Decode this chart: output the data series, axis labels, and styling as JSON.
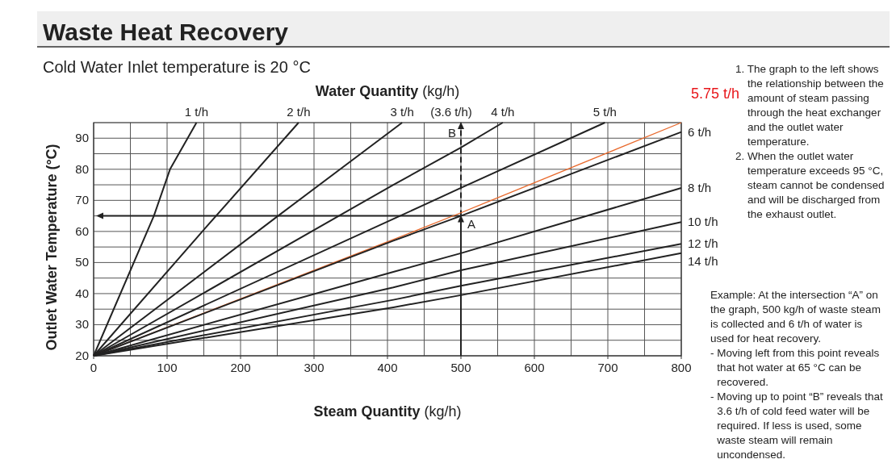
{
  "chart_data": {
    "type": "line",
    "title": "Waste Heat Recovery",
    "subtitle": "Cold Water Inlet temperature is 20 °C",
    "x2label": "Water Quantity (kg/h)",
    "xlabel": "Steam Quantity (kg/h)",
    "ylabel": "Outlet Water Temperature (°C)",
    "xlim": [
      0,
      800
    ],
    "xticks": [
      0,
      100,
      200,
      300,
      400,
      500,
      600,
      700,
      800
    ],
    "ylim": [
      20,
      95
    ],
    "yticks": [
      20,
      30,
      40,
      50,
      60,
      70,
      80,
      90
    ],
    "grid": true,
    "marker": "none",
    "line_style": "solid",
    "series": [
      {
        "name": "1 t/h",
        "color": "#222222",
        "x": [
          0,
          82,
          104,
          140
        ],
        "values": [
          20,
          65,
          80,
          95
        ]
      },
      {
        "name": "2 t/h",
        "color": "#222222",
        "x": [
          0,
          148,
          279
        ],
        "values": [
          20,
          60,
          95
        ]
      },
      {
        "name": "3 t/h",
        "color": "#222222",
        "x": [
          0,
          251,
          420
        ],
        "values": [
          20,
          65,
          95
        ]
      },
      {
        "name": "4 t/h",
        "color": "#222222",
        "x": [
          0,
          408,
          500,
          557
        ],
        "values": [
          20,
          75,
          87,
          95
        ]
      },
      {
        "name": "5 t/h",
        "color": "#222222",
        "x": [
          0,
          408,
          500,
          696
        ],
        "values": [
          20,
          64,
          74,
          95
        ]
      },
      {
        "name": "5.75 t/h",
        "color": "#e8692c",
        "x": [
          0,
          408,
          500,
          800
        ],
        "values": [
          20,
          57.4,
          66,
          95
        ]
      },
      {
        "name": "6 t/h",
        "color": "#222222",
        "x": [
          0,
          408,
          500,
          800
        ],
        "values": [
          20,
          57,
          65,
          92
        ]
      },
      {
        "name": "8 t/h",
        "color": "#222222",
        "x": [
          0,
          408,
          500,
          800
        ],
        "values": [
          20,
          47,
          53,
          74
        ]
      },
      {
        "name": "10 t/h",
        "color": "#222222",
        "x": [
          0,
          408,
          500,
          800
        ],
        "values": [
          20,
          42,
          47.5,
          63
        ]
      },
      {
        "name": "12 t/h",
        "color": "#222222",
        "x": [
          0,
          408,
          500,
          800
        ],
        "values": [
          20,
          38,
          42.5,
          56
        ]
      },
      {
        "name": "14 t/h",
        "color": "#222222",
        "x": [
          0,
          408,
          500,
          800
        ],
        "values": [
          20,
          35.6,
          39.5,
          53
        ]
      }
    ],
    "annotations": [
      {
        "text": "A",
        "x": 500,
        "y": 65
      },
      "B",
      "(3.6 t/h)",
      "1. The graph to the left shows the relationship between the amount of steam passing through the heat exchanger and the outlet water temperature.",
      "2. When the outlet water temperature exceeds 95 °C, steam cannot be condensed and will be discharged from the exhaust outlet.",
      "Example: At the intersection “A” on the graph, 500 kg/h of waste steam is collected and 6 t/h of water is used for heat recovery.",
      "- Moving left from this point reveals that hot water at 65 °C can be recovered.",
      "- Moving up to point “B” reveals that 3.6 t/h of cold feed water will be required. If less is used, some waste steam will remain uncondensed."
    ]
  }
}
